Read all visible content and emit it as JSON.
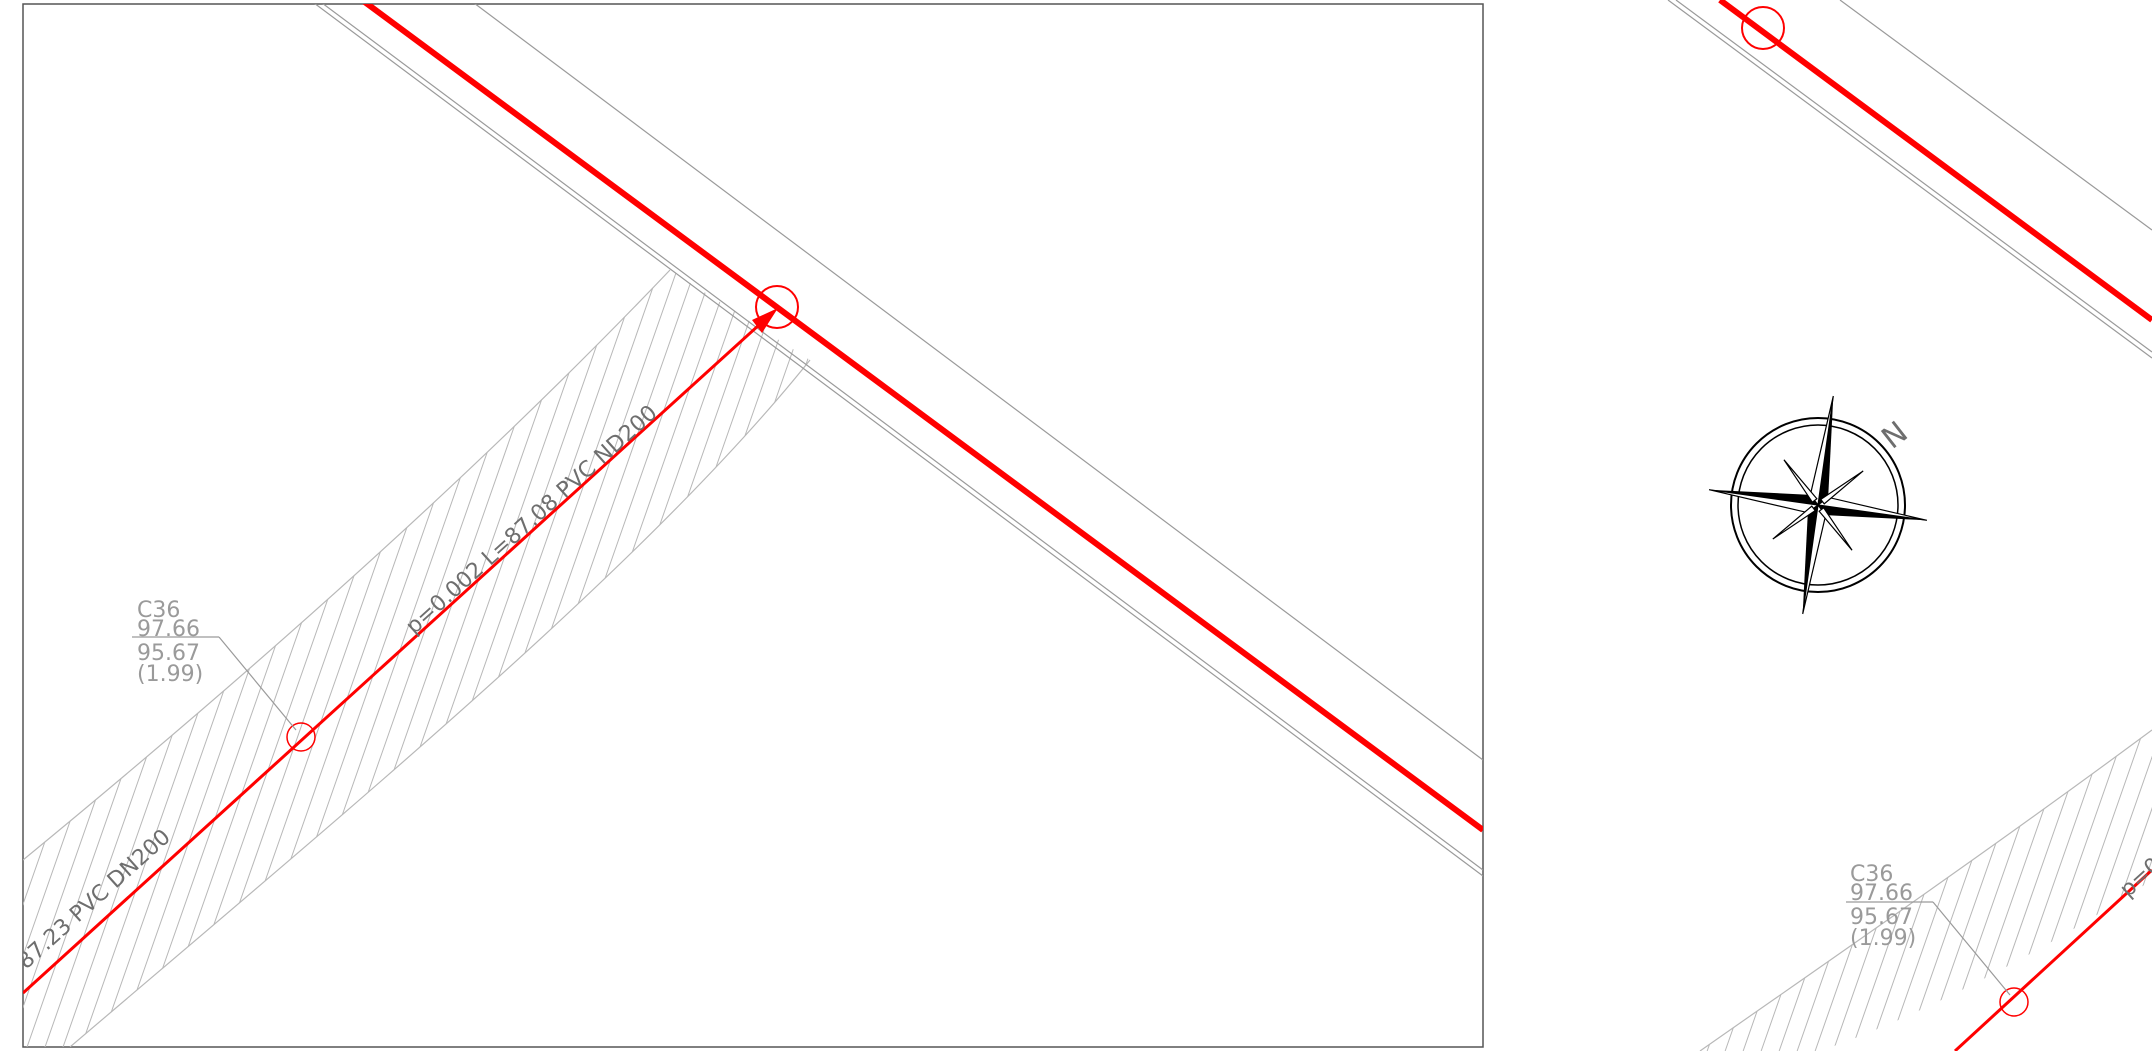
{
  "colors": {
    "background": "#ffffff",
    "frame": "#555555",
    "road_edge": "#9a9a9a",
    "main_pipe": "#ff0000",
    "hatch": "#b8b8b8",
    "label": "#9a9a9a",
    "compass": "#000000"
  },
  "left_viewport": {
    "manhole_label": {
      "id": "C36",
      "top_level": "97.66",
      "invert_level": "95.67",
      "depth": "(1.99)"
    },
    "pipe_label_upper": "p=0.002  L=87.08  PVC  ND200",
    "pipe_label_lower": "87.23  PVC  DN200"
  },
  "right_viewport": {
    "manhole_label": {
      "id": "C36",
      "top_level": "97.66",
      "invert_level": "95.67",
      "depth": "(1.99)"
    },
    "pipe_label_partial": "p=0",
    "north_symbol": "N",
    "north_arrow_icon": "compass-rose-icon"
  }
}
